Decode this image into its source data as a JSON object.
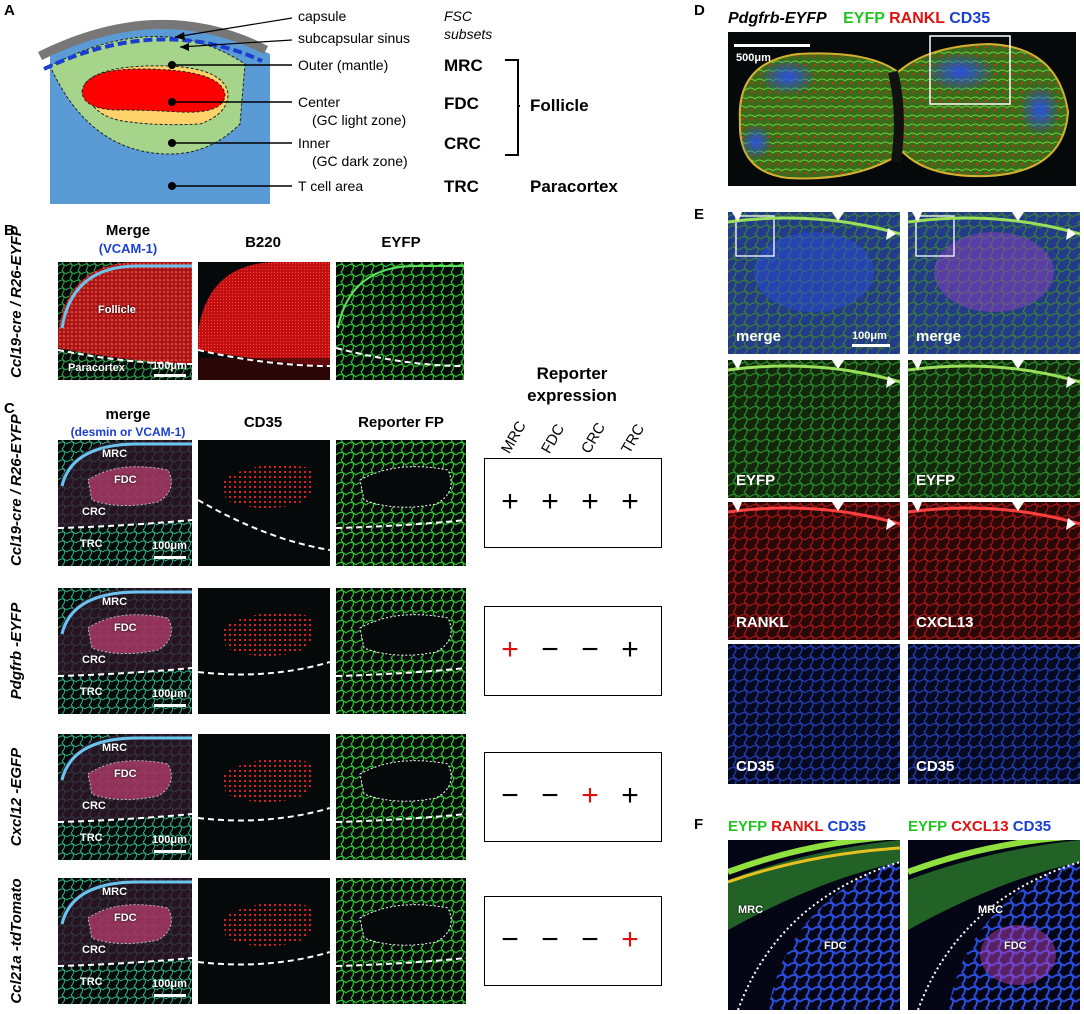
{
  "panel_letters": {
    "a": "A",
    "b": "B",
    "c": "C",
    "d": "D",
    "e": "E",
    "f": "F"
  },
  "schematic": {
    "capsule": "capsule",
    "subcapsular_sinus": "subcapsular sinus",
    "fsc1": "FSC",
    "fsc2": "subsets",
    "outer": "Outer (mantle)",
    "center": "Center",
    "center_sub": "(GC light zone)",
    "inner": "Inner",
    "inner_sub": "(GC dark zone)",
    "tcell": "T cell area",
    "mrc": "MRC",
    "fdc": "FDC",
    "crc": "CRC",
    "trc": "TRC",
    "follicle": "Follicle",
    "paracortex": "Paracortex"
  },
  "panelB": {
    "col_merge": "Merge",
    "col_merge_sub": "(VCAM-1)",
    "col_b220": "B220",
    "col_eyfp": "EYFP",
    "row_label": "Ccl19-cre / R26-EYFP",
    "follicle": "Follicle",
    "paracortex": "Paracortex",
    "scale": "100μm"
  },
  "panelC": {
    "col_merge": "merge",
    "col_merge_sub": "(desmin or VCAM-1)",
    "col_cd35": "CD35",
    "col_fp": "Reporter FP",
    "expr_title1": "Reporter",
    "expr_title2": "expression",
    "expr_cols": [
      "MRC",
      "FDC",
      "CRC",
      "TRC"
    ],
    "scale": "100μm",
    "rows": [
      {
        "label": "Ccl19-cre / R26-EYFP",
        "region_labels": [
          "MRC",
          "FDC",
          "CRC",
          "TRC"
        ],
        "signs": [
          "+",
          "+",
          "+",
          "+"
        ],
        "red": [
          false,
          false,
          false,
          false
        ]
      },
      {
        "label": "Pdgfrb -EYFP",
        "region_labels": [
          "MRC",
          "FDC",
          "CRC",
          "TRC"
        ],
        "signs": [
          "+",
          "−",
          "−",
          "+"
        ],
        "red": [
          true,
          false,
          false,
          false
        ]
      },
      {
        "label": "Cxcl12 -EGFP",
        "region_labels": [
          "MRC",
          "FDC",
          "CRC",
          "TRC"
        ],
        "signs": [
          "−",
          "−",
          "+",
          "+"
        ],
        "red": [
          false,
          false,
          true,
          false
        ]
      },
      {
        "label": "Ccl21a -tdTomato",
        "region_labels": [
          "MRC",
          "FDC",
          "CRC",
          "TRC"
        ],
        "signs": [
          "−",
          "−",
          "−",
          "+"
        ],
        "red": [
          false,
          false,
          false,
          true
        ]
      }
    ]
  },
  "panelD": {
    "title": "Pdgfrb-EYFP",
    "ch1": "EYFP",
    "ch2": "RANKL",
    "ch3": "CD35",
    "scale": "500μm"
  },
  "panelE": {
    "left": [
      "merge",
      "EYFP",
      "RANKL",
      "CD35"
    ],
    "right": [
      "merge",
      "EYFP",
      "CXCL13",
      "CD35"
    ],
    "scale": "100μm"
  },
  "panelF": {
    "left_title": [
      "EYFP",
      "RANKL",
      "CD35"
    ],
    "right_title": [
      "EYFP",
      "CXCL13",
      "CD35"
    ],
    "mrc": "MRC",
    "fdc": "FDC"
  },
  "colors": {
    "green": "#22c422",
    "red": "#e01010",
    "blue": "#1a3fd0",
    "schematic_green": "#a6d48a",
    "schematic_red": "#ff0000",
    "schematic_yellow": "#ffd36a",
    "schematic_blue": "#5b9bd5"
  }
}
